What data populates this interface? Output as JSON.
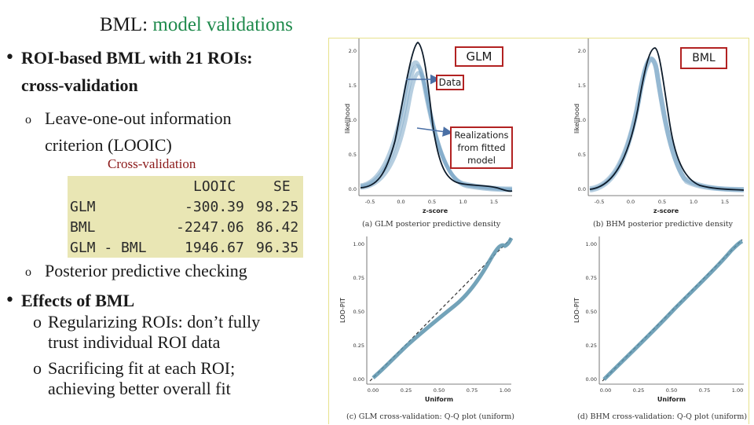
{
  "slide": {
    "title_prefix": "BML:",
    "title_highlight": "model validations",
    "bullet1_line1": "ROI-based BML with 21 ROIs:",
    "bullet1_line2": "cross-validation",
    "sub1_line1": "Leave-one-out information",
    "sub1_line2": "criterion (LOOIC)",
    "cv_label": "Cross-validation",
    "sub2": "Posterior predictive checking",
    "bullet2": "Effects of BML",
    "sub3": "Regularizing ROIs: don’t fully",
    "sub3_cont": "trust individual ROI data",
    "sub4": "Sacrificing fit at each ROI;",
    "sub4_cont": "achieving better overall fit",
    "bullet_glyph": "•",
    "sub_glyph": "o"
  },
  "looic_table": {
    "headers": [
      "LOOIC",
      "SE"
    ],
    "rows": [
      {
        "label": "GLM",
        "looic": "-300.39",
        "se": "98.25"
      },
      {
        "label": "BML",
        "looic": "-2247.06",
        "se": "86.42"
      },
      {
        "label": "GLM - BML",
        "looic": "1946.67",
        "se": "96.35"
      }
    ]
  },
  "figure": {
    "callout_glm": "GLM",
    "callout_bml": "BML",
    "callout_data": "Data",
    "callout_realizations": "Realizations from fitted model",
    "caption_a": "(a) GLM posterior predictive density",
    "caption_b": "(b) BHM posterior predictive density",
    "caption_c": "(c) GLM cross-validation: Q-Q plot (uniform)",
    "caption_d": "(d) BHM cross-validation: Q-Q plot (uniform)",
    "density_ylabel": "likelihood",
    "density_xlabel": "z-score",
    "qq_ylabel": "LOO-PIT",
    "qq_xlabel": "Uniform",
    "density_xticks": [
      "-0.5",
      "0.0",
      "0.5",
      "1.0",
      "1.5"
    ],
    "density_yticks": [
      "2.0",
      "1.5",
      "1.0",
      "0.5",
      "0.0"
    ],
    "qq_ticks": [
      "0.00",
      "0.25",
      "0.50",
      "0.75",
      "1.00"
    ],
    "colors": {
      "realizations": "#7aa6c6",
      "data": "#0d1b2a",
      "qq": "#5b93ad",
      "callout_border": "#b22222",
      "arrow": "#4a6fa5"
    }
  }
}
